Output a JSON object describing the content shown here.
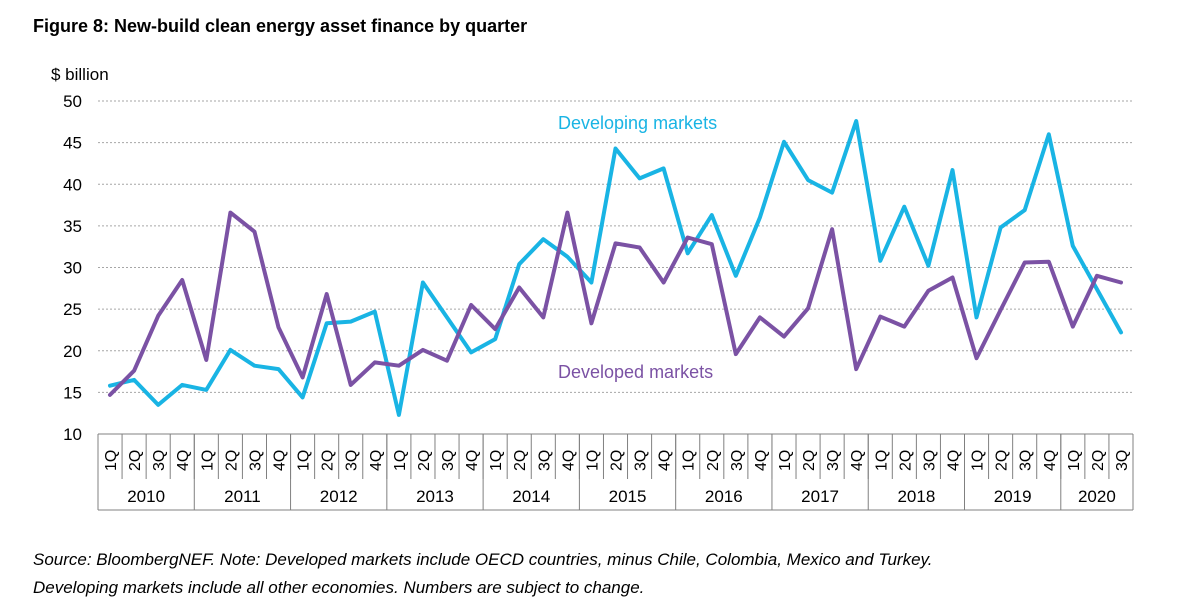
{
  "title": "Figure 8: New-build clean energy asset finance by quarter",
  "source": {
    "line1": "Source: BloombergNEF. Note: Developed markets include OECD countries, minus Chile, Colombia, Mexico and Turkey.",
    "line2": "Developing markets include all other economies. Numbers are subject to change."
  },
  "colors": {
    "developing": "#19b4e4",
    "developed": "#7b52a4",
    "grid": "#a6a6a6",
    "axis": "#808080"
  },
  "chart_data": {
    "type": "line",
    "ylabel": "$ billion",
    "ylim": [
      10,
      50
    ],
    "yticks": [
      10,
      15,
      20,
      25,
      30,
      35,
      40,
      45,
      50
    ],
    "grid": true,
    "years": [
      {
        "label": "2010",
        "quarters": 4
      },
      {
        "label": "2011",
        "quarters": 4
      },
      {
        "label": "2012",
        "quarters": 4
      },
      {
        "label": "2013",
        "quarters": 4
      },
      {
        "label": "2014",
        "quarters": 4
      },
      {
        "label": "2015",
        "quarters": 4
      },
      {
        "label": "2016",
        "quarters": 4
      },
      {
        "label": "2017",
        "quarters": 4
      },
      {
        "label": "2018",
        "quarters": 4
      },
      {
        "label": "2019",
        "quarters": 4
      },
      {
        "label": "2020",
        "quarters": 3
      }
    ],
    "categories": [
      "1Q",
      "2Q",
      "3Q",
      "4Q",
      "1Q",
      "2Q",
      "3Q",
      "4Q",
      "1Q",
      "2Q",
      "3Q",
      "4Q",
      "1Q",
      "2Q",
      "3Q",
      "4Q",
      "1Q",
      "2Q",
      "3Q",
      "4Q",
      "1Q",
      "2Q",
      "3Q",
      "4Q",
      "1Q",
      "2Q",
      "3Q",
      "4Q",
      "1Q",
      "2Q",
      "3Q",
      "4Q",
      "1Q",
      "2Q",
      "3Q",
      "4Q",
      "1Q",
      "2Q",
      "3Q",
      "4Q",
      "1Q",
      "2Q",
      "3Q"
    ],
    "series": [
      {
        "name": "Developing markets",
        "color": "#19b4e4",
        "values": [
          15.8,
          16.5,
          13.5,
          15.9,
          15.3,
          20.1,
          18.2,
          17.8,
          14.4,
          23.3,
          23.5,
          24.7,
          12.3,
          28.2,
          24.0,
          19.8,
          21.4,
          30.4,
          33.4,
          31.3,
          28.2,
          44.3,
          40.7,
          41.9,
          31.7,
          36.3,
          29.0,
          36.0,
          45.1,
          40.5,
          39.0,
          47.6,
          30.8,
          37.3,
          30.2,
          41.7,
          24.0,
          34.8,
          36.9,
          46.0,
          32.6,
          27.4,
          22.2
        ]
      },
      {
        "name": "Developed markets",
        "color": "#7b52a4",
        "values": [
          14.7,
          17.6,
          24.2,
          28.5,
          18.9,
          36.6,
          34.3,
          22.8,
          16.8,
          26.8,
          15.9,
          18.6,
          18.2,
          20.1,
          18.8,
          25.5,
          22.6,
          27.6,
          24.0,
          36.6,
          23.3,
          32.9,
          32.4,
          28.2,
          33.6,
          32.8,
          19.6,
          24.0,
          21.7,
          25.1,
          34.6,
          17.8,
          24.1,
          22.9,
          27.2,
          28.8,
          19.1,
          24.9,
          30.6,
          30.7,
          22.9,
          29.0,
          28.2
        ]
      }
    ]
  }
}
